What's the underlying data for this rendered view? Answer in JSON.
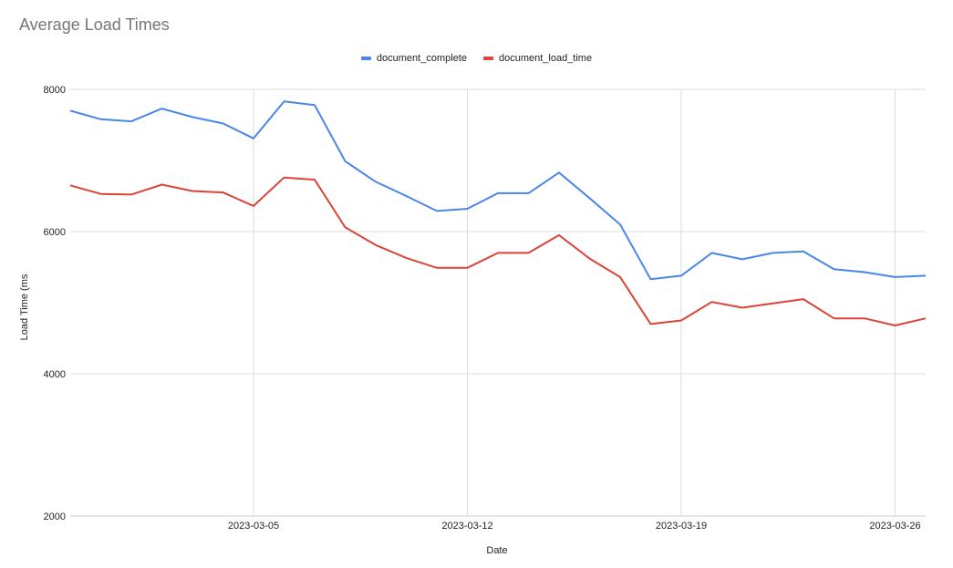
{
  "chart_data": {
    "type": "line",
    "title": "Average Load Times",
    "xlabel": "Date",
    "ylabel": "Load Time (ms",
    "ylim": [
      2000,
      8000
    ],
    "yticks": [
      2000,
      4000,
      6000,
      8000
    ],
    "xticks": [
      "2023-03-05",
      "2023-03-12",
      "2023-03-19",
      "2023-03-26"
    ],
    "xlim": [
      "2023-02-27",
      "2023-03-27"
    ],
    "grid": true,
    "legend_position": "top-center",
    "x": [
      "2023-02-27",
      "2023-02-28",
      "2023-03-01",
      "2023-03-02",
      "2023-03-03",
      "2023-03-04",
      "2023-03-05",
      "2023-03-06",
      "2023-03-07",
      "2023-03-08",
      "2023-03-09",
      "2023-03-10",
      "2023-03-11",
      "2023-03-12",
      "2023-03-13",
      "2023-03-14",
      "2023-03-15",
      "2023-03-16",
      "2023-03-17",
      "2023-03-18",
      "2023-03-19",
      "2023-03-20",
      "2023-03-21",
      "2023-03-22",
      "2023-03-23",
      "2023-03-24",
      "2023-03-25",
      "2023-03-26",
      "2023-03-27"
    ],
    "series": [
      {
        "name": "document_complete",
        "color": "#4a86e8",
        "values": [
          7700,
          7580,
          7550,
          7730,
          7610,
          7520,
          7310,
          7830,
          7780,
          6990,
          6700,
          6500,
          6290,
          6320,
          6540,
          6540,
          6830,
          6470,
          6100,
          5330,
          5380,
          5700,
          5610,
          5700,
          5720,
          5470,
          5430,
          5360,
          5380
        ]
      },
      {
        "name": "document_load_time",
        "color": "#db4437",
        "values": [
          6650,
          6530,
          6520,
          6660,
          6570,
          6550,
          6360,
          6760,
          6730,
          6060,
          5810,
          5630,
          5490,
          5490,
          5700,
          5700,
          5950,
          5620,
          5360,
          4700,
          4750,
          5010,
          4930,
          4990,
          5050,
          4780,
          4780,
          4680,
          4780
        ]
      }
    ]
  }
}
